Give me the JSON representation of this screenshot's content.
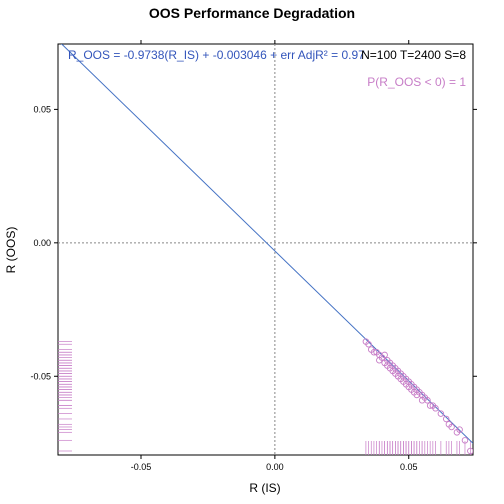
{
  "chart_data": {
    "type": "scatter",
    "title": "OOS Performance Degradation",
    "xlabel": "R (IS)",
    "ylabel": "R (OOS)",
    "xlim": [
      -0.081,
      0.074
    ],
    "ylim": [
      -0.0795,
      0.0745
    ],
    "x_ticks": [
      -0.05,
      0.0,
      0.05
    ],
    "x_tick_labels": [
      "-0.05",
      "0.00",
      "0.05"
    ],
    "y_ticks": [
      -0.05,
      0.0,
      0.05
    ],
    "y_tick_labels": [
      "-0.05",
      "0.00",
      "0.05"
    ],
    "grid": false,
    "reference_lines": {
      "x": 0,
      "y": 0,
      "style": "dotted"
    },
    "regression": {
      "slope": -0.9738,
      "intercept": -0.003046
    },
    "series": [
      {
        "points": [
          [
            0.034,
            -0.037
          ],
          [
            0.035,
            -0.038
          ],
          [
            0.036,
            -0.04
          ],
          [
            0.037,
            -0.041
          ],
          [
            0.038,
            -0.041
          ],
          [
            0.039,
            -0.042
          ],
          [
            0.039,
            -0.044
          ],
          [
            0.04,
            -0.043
          ],
          [
            0.041,
            -0.042
          ],
          [
            0.041,
            -0.045
          ],
          [
            0.042,
            -0.044
          ],
          [
            0.042,
            -0.046
          ],
          [
            0.043,
            -0.045
          ],
          [
            0.043,
            -0.047
          ],
          [
            0.044,
            -0.046
          ],
          [
            0.044,
            -0.048
          ],
          [
            0.045,
            -0.047
          ],
          [
            0.045,
            -0.049
          ],
          [
            0.046,
            -0.048
          ],
          [
            0.046,
            -0.05
          ],
          [
            0.047,
            -0.049
          ],
          [
            0.047,
            -0.051
          ],
          [
            0.048,
            -0.05
          ],
          [
            0.048,
            -0.052
          ],
          [
            0.049,
            -0.051
          ],
          [
            0.049,
            -0.053
          ],
          [
            0.05,
            -0.052
          ],
          [
            0.05,
            -0.054
          ],
          [
            0.051,
            -0.053
          ],
          [
            0.051,
            -0.055
          ],
          [
            0.052,
            -0.054
          ],
          [
            0.052,
            -0.056
          ],
          [
            0.053,
            -0.055
          ],
          [
            0.053,
            -0.057
          ],
          [
            0.054,
            -0.056
          ],
          [
            0.055,
            -0.057
          ],
          [
            0.055,
            -0.059
          ],
          [
            0.056,
            -0.058
          ],
          [
            0.057,
            -0.059
          ],
          [
            0.058,
            -0.061
          ],
          [
            0.059,
            -0.061
          ],
          [
            0.06,
            -0.062
          ],
          [
            0.062,
            -0.064
          ],
          [
            0.064,
            -0.066
          ],
          [
            0.065,
            -0.068
          ],
          [
            0.066,
            -0.069
          ],
          [
            0.068,
            -0.071
          ],
          [
            0.069,
            -0.07
          ],
          [
            0.071,
            -0.074
          ],
          [
            0.073,
            -0.078
          ]
        ]
      }
    ],
    "annotations": {
      "regression_text": "R_OOS = -0.9738(R_IS) + -0.003046 + err  AdjR² = 0.97",
      "stats_text": "N=100   T=2400   S=8",
      "prob_text": "P(R_OOS < 0) = 1"
    },
    "colors": {
      "points": "#c77dc7",
      "rug": "#c77dc7",
      "fit_line": "#4472c4",
      "regression_text": "#3355bb",
      "prob_text": "#c77dc7",
      "reference": "#888888"
    }
  }
}
